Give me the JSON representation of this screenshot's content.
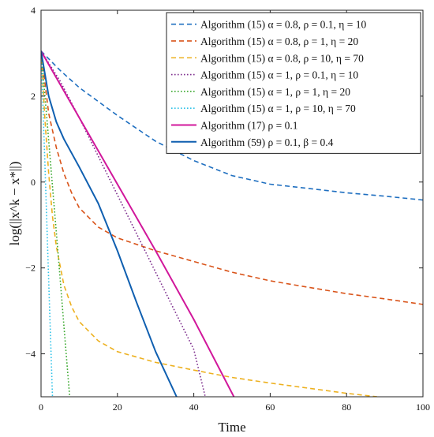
{
  "chart_data": {
    "type": "line",
    "xlabel": "Time",
    "ylabel": "log(||x^k − x*||)",
    "xlim": [
      0,
      100
    ],
    "ylim": [
      -5,
      4
    ],
    "xticks": [
      "0",
      "20",
      "40",
      "60",
      "80",
      "100"
    ],
    "yticks": [
      "−4",
      "−2",
      "0",
      "2",
      "4"
    ],
    "grid": false,
    "legend_position": "top-right",
    "series": [
      {
        "name": "Algorithm (15)  α = 0.8, ρ = 0.1, η = 10",
        "color": "#1f6fc0",
        "style": "dashed",
        "x": [
          0,
          5,
          10,
          20,
          30,
          40,
          50,
          60,
          70,
          80,
          90,
          100
        ],
        "y": [
          3.05,
          2.6,
          2.2,
          1.55,
          0.95,
          0.5,
          0.15,
          -0.05,
          -0.15,
          -0.25,
          -0.33,
          -0.42
        ]
      },
      {
        "name": "Algorithm (15)  α = 0.8, ρ = 1, η = 20",
        "color": "#d9541a",
        "style": "dashed",
        "x": [
          0,
          2,
          4,
          6,
          8,
          10,
          15,
          20,
          30,
          40,
          50,
          60,
          70,
          80,
          90,
          100
        ],
        "y": [
          3.05,
          1.6,
          0.8,
          0.2,
          -0.25,
          -0.6,
          -1.05,
          -1.3,
          -1.6,
          -1.85,
          -2.1,
          -2.3,
          -2.45,
          -2.6,
          -2.72,
          -2.85
        ]
      },
      {
        "name": "Algorithm (15)  α = 0.8, ρ = 10, η = 70",
        "color": "#edb120",
        "style": "dashed",
        "x": [
          0,
          1,
          2,
          3,
          4,
          6,
          8,
          10,
          15,
          20,
          30,
          40,
          50,
          60,
          70,
          80,
          88
        ],
        "y": [
          3.05,
          1.5,
          0.2,
          -0.8,
          -1.5,
          -2.4,
          -2.9,
          -3.25,
          -3.7,
          -3.95,
          -4.2,
          -4.38,
          -4.55,
          -4.68,
          -4.8,
          -4.92,
          -5.0
        ]
      },
      {
        "name": "Algorithm (15)  α = 1, ρ = 0.1, η = 10",
        "color": "#7e2f8e",
        "style": "dotted",
        "x": [
          0,
          5,
          10,
          20,
          30,
          40,
          43
        ],
        "y": [
          3.05,
          2.35,
          1.5,
          -0.3,
          -2.1,
          -3.9,
          -5.0
        ]
      },
      {
        "name": "Algorithm (15)  α = 1, ρ = 1, η = 20",
        "color": "#3aa82e",
        "style": "dotted",
        "x": [
          0,
          1.5,
          3,
          4.5,
          6,
          7.5
        ],
        "y": [
          3.05,
          1.5,
          -0.1,
          -1.7,
          -3.35,
          -5.0
        ]
      },
      {
        "name": "Algorithm (15)  α = 1, ρ = 10, η = 70",
        "color": "#2ec2e8",
        "style": "dotted",
        "x": [
          0,
          1,
          2,
          3
        ],
        "y": [
          3.05,
          0.5,
          -2.3,
          -5.0
        ]
      },
      {
        "name": "Algorithm (17)  ρ = 0.1",
        "color": "#d1179b",
        "style": "solid",
        "x": [
          0,
          10,
          20,
          30,
          40,
          50.5
        ],
        "y": [
          3.05,
          1.5,
          -0.05,
          -1.6,
          -3.2,
          -5.0
        ]
      },
      {
        "name": "Algorithm (59)  ρ = 0.1, β = 0.4",
        "color": "#0f5fb0",
        "style": "solid",
        "x": [
          0,
          2,
          4,
          6,
          10,
          15,
          20,
          25,
          30,
          35.5
        ],
        "y": [
          3.05,
          2.0,
          1.4,
          1.0,
          0.35,
          -0.5,
          -1.6,
          -2.8,
          -3.95,
          -5.0
        ]
      }
    ]
  }
}
